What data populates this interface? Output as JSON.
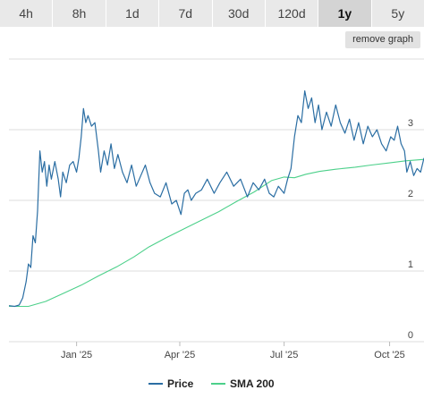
{
  "tabs": [
    {
      "label": "4h",
      "active": false
    },
    {
      "label": "8h",
      "active": false
    },
    {
      "label": "1d",
      "active": false
    },
    {
      "label": "7d",
      "active": false
    },
    {
      "label": "30d",
      "active": false
    },
    {
      "label": "120d",
      "active": false
    },
    {
      "label": "1y",
      "active": true
    },
    {
      "label": "5y",
      "active": false
    }
  ],
  "remove_graph_label": "remove graph",
  "chart_data": {
    "type": "line",
    "title": "",
    "xlabel": "",
    "ylabel": "",
    "ylim": [
      0,
      4
    ],
    "xlim": [
      "2024-11-03",
      "2025-10-31"
    ],
    "y_ticks": [
      0,
      1,
      2,
      3
    ],
    "x_ticks": [
      {
        "date": "2025-01-01",
        "label": "Jan '25"
      },
      {
        "date": "2025-04-01",
        "label": "Apr '25"
      },
      {
        "date": "2025-07-01",
        "label": "Jul '25"
      },
      {
        "date": "2025-10-01",
        "label": "Oct '25"
      }
    ],
    "grid": true,
    "legend_position": "bottom",
    "series": [
      {
        "name": "Price",
        "color": "#2b6ea3",
        "points": [
          [
            "2024-11-03",
            0.51
          ],
          [
            "2024-11-08",
            0.5
          ],
          [
            "2024-11-12",
            0.52
          ],
          [
            "2024-11-15",
            0.62
          ],
          [
            "2024-11-18",
            0.85
          ],
          [
            "2024-11-20",
            1.1
          ],
          [
            "2024-11-22",
            1.05
          ],
          [
            "2024-11-24",
            1.5
          ],
          [
            "2024-11-26",
            1.4
          ],
          [
            "2024-11-28",
            1.85
          ],
          [
            "2024-11-30",
            2.7
          ],
          [
            "2024-12-02",
            2.4
          ],
          [
            "2024-12-04",
            2.55
          ],
          [
            "2024-12-06",
            2.2
          ],
          [
            "2024-12-08",
            2.5
          ],
          [
            "2024-12-10",
            2.3
          ],
          [
            "2024-12-13",
            2.55
          ],
          [
            "2024-12-16",
            2.3
          ],
          [
            "2024-12-18",
            2.05
          ],
          [
            "2024-12-20",
            2.4
          ],
          [
            "2024-12-23",
            2.25
          ],
          [
            "2024-12-26",
            2.5
          ],
          [
            "2024-12-29",
            2.55
          ],
          [
            "2025-01-01",
            2.4
          ],
          [
            "2025-01-03",
            2.6
          ],
          [
            "2025-01-05",
            2.9
          ],
          [
            "2025-01-07",
            3.3
          ],
          [
            "2025-01-09",
            3.1
          ],
          [
            "2025-01-11",
            3.2
          ],
          [
            "2025-01-14",
            3.05
          ],
          [
            "2025-01-17",
            3.1
          ],
          [
            "2025-01-20",
            2.7
          ],
          [
            "2025-01-22",
            2.4
          ],
          [
            "2025-01-25",
            2.7
          ],
          [
            "2025-01-28",
            2.5
          ],
          [
            "2025-01-31",
            2.8
          ],
          [
            "2025-02-03",
            2.45
          ],
          [
            "2025-02-06",
            2.65
          ],
          [
            "2025-02-10",
            2.4
          ],
          [
            "2025-02-14",
            2.25
          ],
          [
            "2025-02-18",
            2.5
          ],
          [
            "2025-02-22",
            2.2
          ],
          [
            "2025-02-26",
            2.35
          ],
          [
            "2025-03-02",
            2.5
          ],
          [
            "2025-03-06",
            2.25
          ],
          [
            "2025-03-10",
            2.1
          ],
          [
            "2025-03-15",
            2.05
          ],
          [
            "2025-03-20",
            2.25
          ],
          [
            "2025-03-25",
            1.95
          ],
          [
            "2025-03-29",
            2.0
          ],
          [
            "2025-04-02",
            1.8
          ],
          [
            "2025-04-05",
            2.1
          ],
          [
            "2025-04-08",
            2.15
          ],
          [
            "2025-04-11",
            2.0
          ],
          [
            "2025-04-15",
            2.1
          ],
          [
            "2025-04-20",
            2.15
          ],
          [
            "2025-04-25",
            2.3
          ],
          [
            "2025-05-01",
            2.1
          ],
          [
            "2025-05-06",
            2.25
          ],
          [
            "2025-05-12",
            2.4
          ],
          [
            "2025-05-18",
            2.2
          ],
          [
            "2025-05-24",
            2.3
          ],
          [
            "2025-05-30",
            2.05
          ],
          [
            "2025-06-04",
            2.25
          ],
          [
            "2025-06-09",
            2.15
          ],
          [
            "2025-06-14",
            2.3
          ],
          [
            "2025-06-18",
            2.1
          ],
          [
            "2025-06-22",
            2.05
          ],
          [
            "2025-06-26",
            2.2
          ],
          [
            "2025-07-01",
            2.1
          ],
          [
            "2025-07-04",
            2.3
          ],
          [
            "2025-07-07",
            2.45
          ],
          [
            "2025-07-10",
            2.9
          ],
          [
            "2025-07-13",
            3.2
          ],
          [
            "2025-07-16",
            3.1
          ],
          [
            "2025-07-19",
            3.55
          ],
          [
            "2025-07-22",
            3.3
          ],
          [
            "2025-07-25",
            3.45
          ],
          [
            "2025-07-28",
            3.1
          ],
          [
            "2025-07-31",
            3.35
          ],
          [
            "2025-08-03",
            3.0
          ],
          [
            "2025-08-07",
            3.25
          ],
          [
            "2025-08-11",
            3.05
          ],
          [
            "2025-08-15",
            3.35
          ],
          [
            "2025-08-19",
            3.1
          ],
          [
            "2025-08-23",
            2.95
          ],
          [
            "2025-08-27",
            3.15
          ],
          [
            "2025-08-31",
            2.85
          ],
          [
            "2025-09-04",
            3.1
          ],
          [
            "2025-09-08",
            2.8
          ],
          [
            "2025-09-12",
            3.05
          ],
          [
            "2025-09-16",
            2.9
          ],
          [
            "2025-09-20",
            3.0
          ],
          [
            "2025-09-24",
            2.8
          ],
          [
            "2025-09-28",
            2.7
          ],
          [
            "2025-10-02",
            2.9
          ],
          [
            "2025-10-05",
            2.85
          ],
          [
            "2025-10-08",
            3.05
          ],
          [
            "2025-10-11",
            2.8
          ],
          [
            "2025-10-14",
            2.7
          ],
          [
            "2025-10-16",
            2.4
          ],
          [
            "2025-10-19",
            2.55
          ],
          [
            "2025-10-22",
            2.35
          ],
          [
            "2025-10-25",
            2.45
          ],
          [
            "2025-10-28",
            2.4
          ],
          [
            "2025-10-31",
            2.6
          ]
        ]
      },
      {
        "name": "SMA 200",
        "color": "#4cd08a",
        "points": [
          [
            "2024-11-03",
            0.5
          ],
          [
            "2024-11-20",
            0.5
          ],
          [
            "2024-12-05",
            0.57
          ],
          [
            "2024-12-20",
            0.68
          ],
          [
            "2025-01-05",
            0.8
          ],
          [
            "2025-01-20",
            0.93
          ],
          [
            "2025-02-05",
            1.06
          ],
          [
            "2025-02-20",
            1.2
          ],
          [
            "2025-03-05",
            1.34
          ],
          [
            "2025-03-20",
            1.47
          ],
          [
            "2025-04-05",
            1.6
          ],
          [
            "2025-04-20",
            1.72
          ],
          [
            "2025-05-05",
            1.84
          ],
          [
            "2025-05-20",
            1.98
          ],
          [
            "2025-06-05",
            2.12
          ],
          [
            "2025-06-20",
            2.28
          ],
          [
            "2025-07-01",
            2.33
          ],
          [
            "2025-07-10",
            2.32
          ],
          [
            "2025-07-20",
            2.37
          ],
          [
            "2025-08-01",
            2.41
          ],
          [
            "2025-08-15",
            2.44
          ],
          [
            "2025-09-01",
            2.47
          ],
          [
            "2025-09-15",
            2.5
          ],
          [
            "2025-10-01",
            2.53
          ],
          [
            "2025-10-15",
            2.56
          ],
          [
            "2025-10-31",
            2.58
          ]
        ]
      }
    ]
  }
}
